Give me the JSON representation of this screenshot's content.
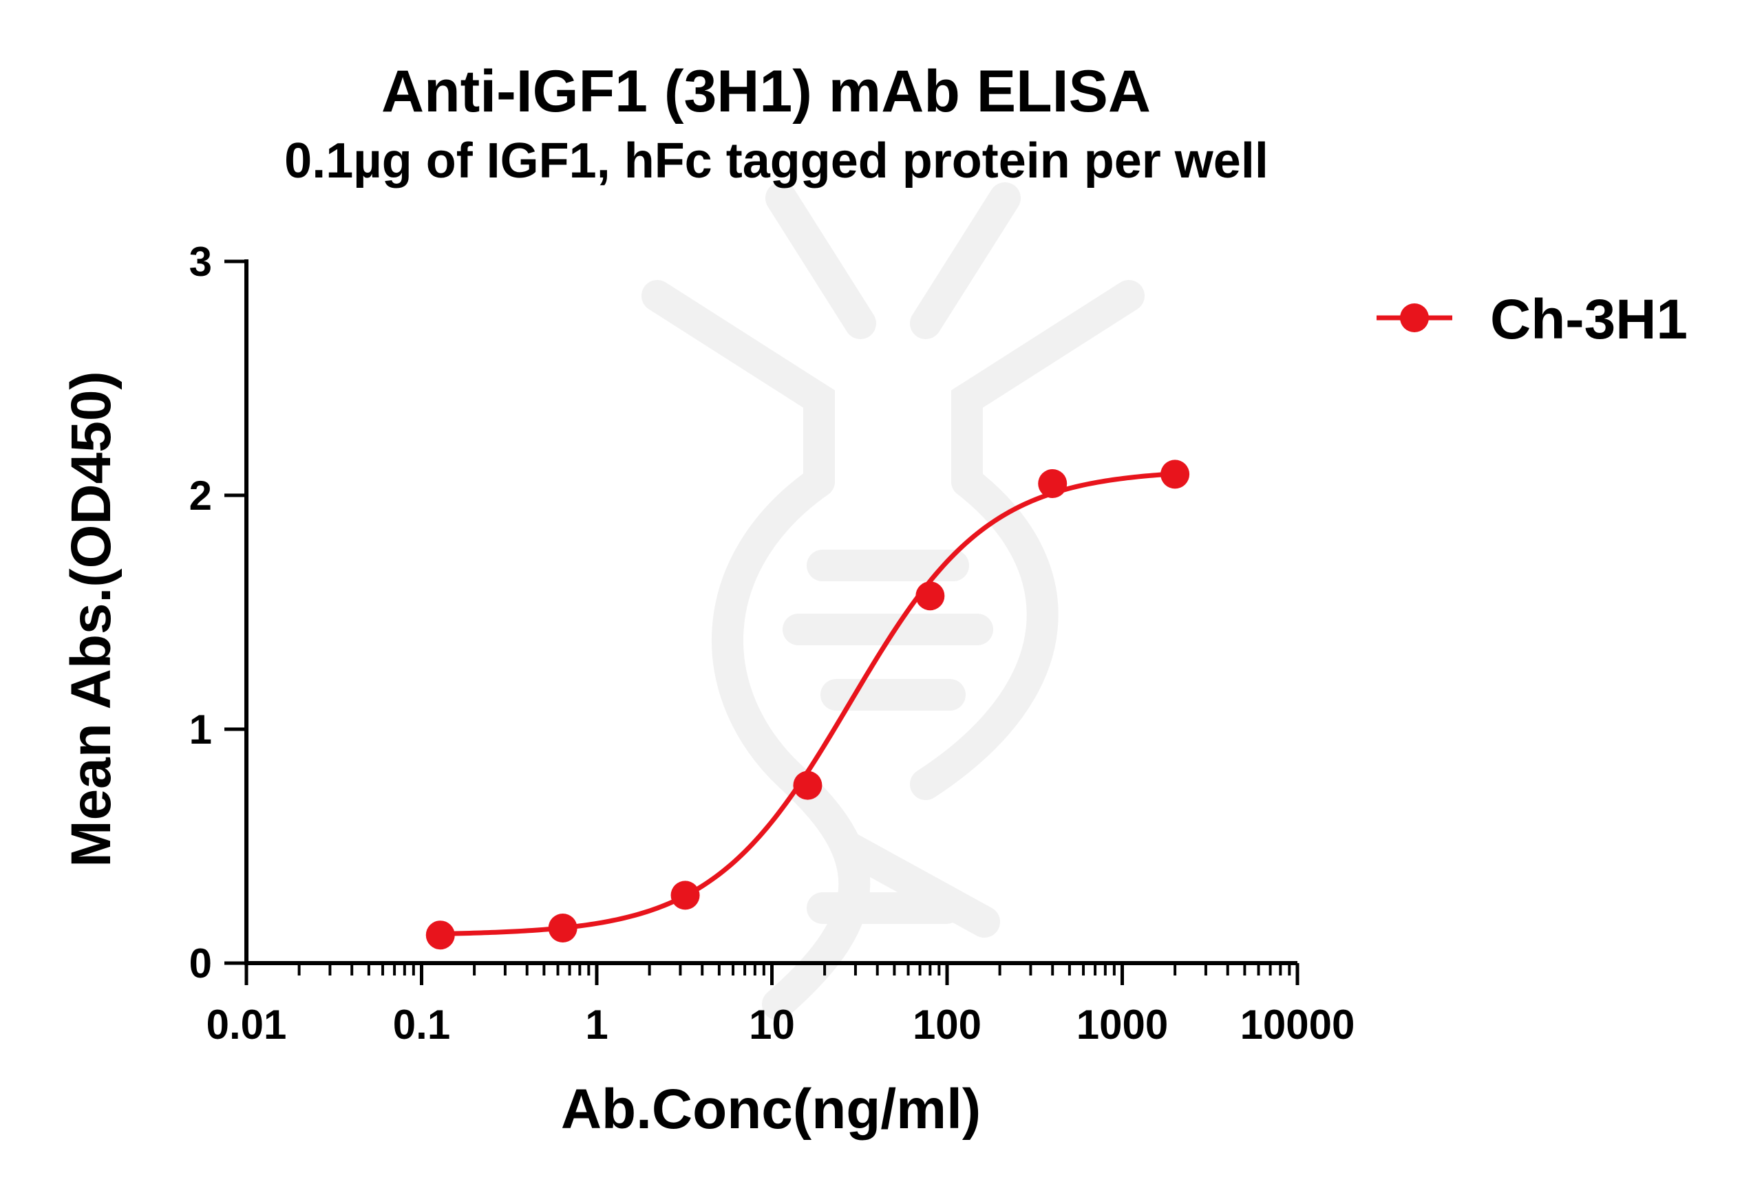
{
  "chart_data": {
    "type": "line",
    "title": "Anti-IGF1 (3H1) mAb ELISA",
    "subtitle": "0.1µg of IGF1, hFc tagged protein per well",
    "xlabel": "Ab.Conc(ng/ml)",
    "ylabel": "Mean Abs.(OD450)",
    "x_scale": "log",
    "xlim": [
      0.01,
      10000
    ],
    "ylim": [
      0,
      3
    ],
    "x_ticks": [
      0.01,
      0.1,
      1,
      10,
      100,
      1000,
      10000
    ],
    "x_tick_labels": [
      "0.01",
      "0.1",
      "1",
      "10",
      "100",
      "1000",
      "10000"
    ],
    "y_ticks": [
      0,
      1,
      2,
      3
    ],
    "y_tick_labels": [
      "0",
      "1",
      "2",
      "3"
    ],
    "grid": false,
    "legend_position": "top-right",
    "series": [
      {
        "name": "Ch-3H1",
        "color": "#e8141c",
        "x": [
          0.128,
          0.64,
          3.2,
          16,
          80,
          400,
          2000
        ],
        "y": [
          0.12,
          0.15,
          0.29,
          0.76,
          1.57,
          2.05,
          2.09
        ],
        "fit": {
          "bottom": 0.12,
          "top": 2.11,
          "ec50": 28,
          "hill": 1.1
        }
      }
    ]
  }
}
